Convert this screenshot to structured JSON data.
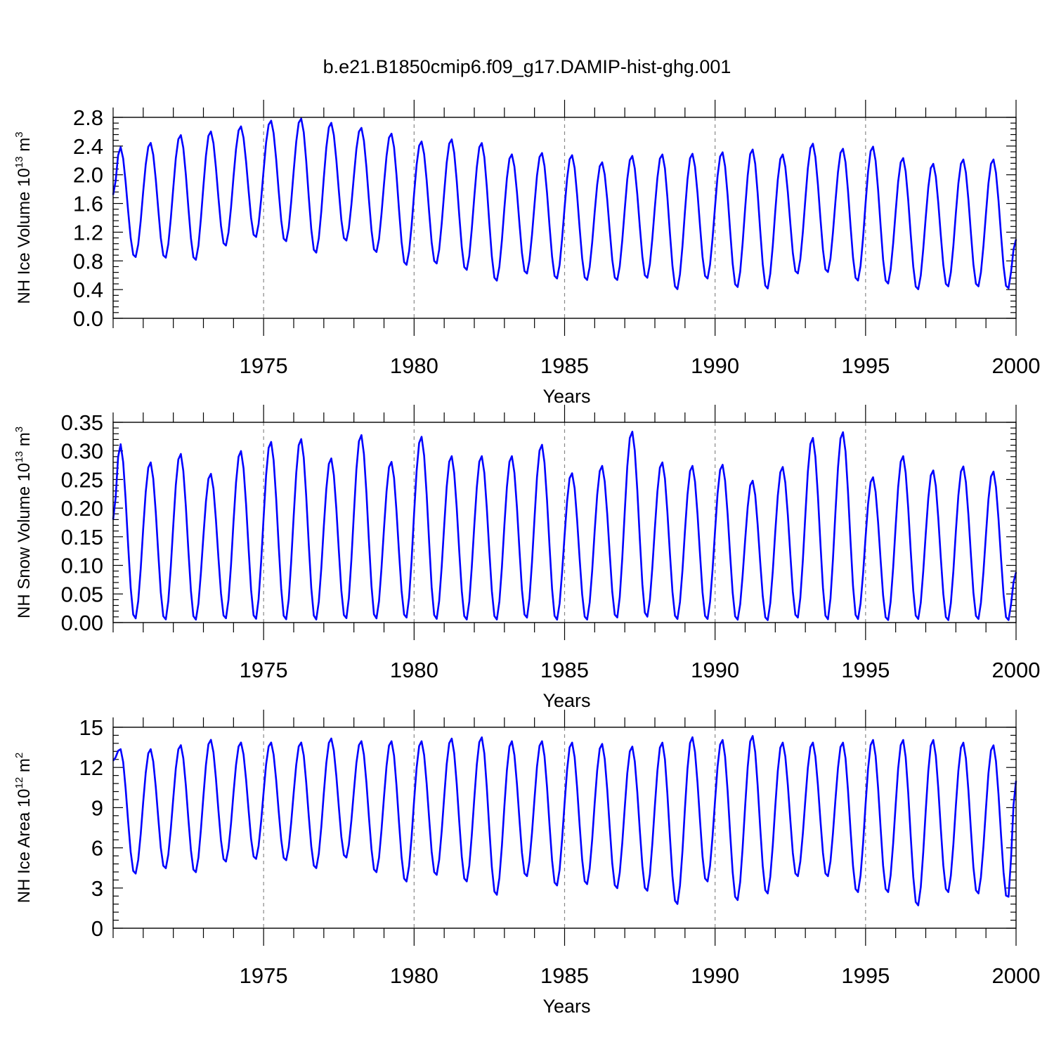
{
  "title": "b.e21.B1850cmip6.f09_g17.DAMIP-hist-ghg.001",
  "colors": {
    "line": "#0000ff",
    "axis": "#000000",
    "grid": "#888888"
  },
  "chart_data": [
    {
      "type": "line",
      "name": "ice-volume",
      "ylabel_parts": [
        "NH Ice Volume 10",
        "13",
        " m",
        "3"
      ],
      "xlabel": "Years",
      "xlim": [
        1970.0,
        2000.0
      ],
      "xticks": [
        1975,
        1980,
        1985,
        1990,
        1995,
        2000
      ],
      "ylim": [
        0,
        2.8
      ],
      "yticks": [
        "0.0",
        "0.4",
        "0.8",
        "1.2",
        "1.6",
        "2.0",
        "2.4",
        "2.8"
      ],
      "ytick_values": [
        0,
        0.4,
        0.8,
        1.2,
        1.6,
        2.0,
        2.4,
        2.8
      ],
      "annual_max": [
        2.39,
        2.45,
        2.56,
        2.61,
        2.68,
        2.76,
        2.79,
        2.73,
        2.66,
        2.58,
        2.47,
        2.5,
        2.45,
        2.29,
        2.31,
        2.28,
        2.18,
        2.27,
        2.29,
        2.3,
        2.32,
        2.36,
        2.29,
        2.44,
        2.37,
        2.4,
        2.24,
        2.16,
        2.22,
        2.22
      ],
      "annual_min": [
        0.84,
        0.83,
        0.8,
        1.0,
        1.12,
        1.06,
        0.9,
        1.07,
        0.91,
        0.73,
        0.75,
        0.66,
        0.51,
        0.61,
        0.54,
        0.52,
        0.52,
        0.55,
        0.39,
        0.54,
        0.42,
        0.4,
        0.61,
        0.63,
        0.51,
        0.47,
        0.39,
        0.43,
        0.43,
        0.4
      ],
      "start_value": 1.72,
      "end_value": 1.1,
      "series_name": "NH Ice Volume"
    },
    {
      "type": "line",
      "name": "snow-volume",
      "ylabel_parts": [
        "NH Snow Volume 10",
        "13",
        " m",
        "3"
      ],
      "xlabel": "Years",
      "xlim": [
        1970.0,
        2000.0
      ],
      "xticks": [
        1975,
        1980,
        1985,
        1990,
        1995,
        2000
      ],
      "ylim": [
        0,
        0.35
      ],
      "yticks": [
        "0.00",
        "0.05",
        "0.10",
        "0.15",
        "0.20",
        "0.25",
        "0.30",
        "0.35"
      ],
      "ytick_values": [
        0,
        0.05,
        0.1,
        0.15,
        0.2,
        0.25,
        0.3,
        0.35
      ],
      "annual_max": [
        0.313,
        0.281,
        0.296,
        0.261,
        0.301,
        0.317,
        0.322,
        0.288,
        0.329,
        0.282,
        0.326,
        0.292,
        0.292,
        0.292,
        0.312,
        0.262,
        0.275,
        0.335,
        0.281,
        0.275,
        0.277,
        0.249,
        0.273,
        0.324,
        0.334,
        0.255,
        0.292,
        0.267,
        0.274,
        0.265
      ],
      "annual_min": [
        0.005,
        0.003,
        0.003,
        0.005,
        0.004,
        0.003,
        0.003,
        0.005,
        0.005,
        0.006,
        0.004,
        0.003,
        0.003,
        0.006,
        0.003,
        0.003,
        0.006,
        0.008,
        0.004,
        0.004,
        0.003,
        0.002,
        0.006,
        0.003,
        0.004,
        0.002,
        0.004,
        0.002,
        0.004,
        0.002
      ],
      "start_value": 0.18,
      "end_value": 0.088,
      "series_name": "NH Snow Volume"
    },
    {
      "type": "line",
      "name": "ice-area",
      "ylabel_parts": [
        "NH Ice Area 10",
        "12",
        " m",
        "2"
      ],
      "xlabel": "Years",
      "xlim": [
        1970.0,
        2000.0
      ],
      "xticks": [
        1975,
        1980,
        1985,
        1990,
        1995,
        2000
      ],
      "ylim": [
        0,
        15
      ],
      "yticks": [
        "0",
        "3",
        "6",
        "9",
        "12",
        "15"
      ],
      "ytick_values": [
        0,
        3,
        6,
        9,
        12,
        15
      ],
      "annual_max": [
        13.4,
        13.4,
        13.7,
        14.1,
        13.9,
        13.9,
        13.9,
        14.2,
        14.0,
        14.0,
        14.0,
        14.2,
        14.3,
        14.0,
        14.0,
        13.9,
        13.8,
        13.6,
        13.9,
        14.3,
        14.1,
        14.4,
        13.9,
        13.9,
        13.9,
        14.1,
        14.1,
        14.1,
        13.9,
        13.7
      ],
      "annual_min": [
        4.0,
        4.4,
        4.1,
        4.9,
        5.1,
        5.0,
        4.4,
        5.2,
        4.1,
        3.4,
        3.9,
        3.4,
        2.4,
        3.8,
        3.1,
        3.2,
        2.9,
        2.7,
        1.7,
        3.4,
        2.0,
        2.5,
        3.8,
        3.8,
        2.6,
        2.6,
        1.6,
        2.6,
        2.5,
        2.1
      ],
      "start_value": 12.5,
      "end_value": 11.0,
      "series_name": "NH Ice Area"
    }
  ]
}
